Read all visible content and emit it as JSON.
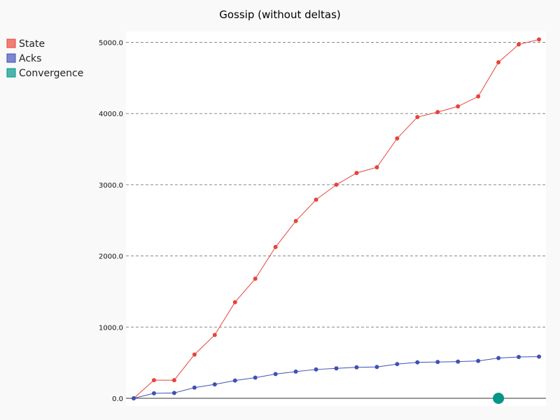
{
  "chart_data": {
    "type": "line",
    "title": "Gossip (without deltas)",
    "xlabel": "",
    "ylabel": "",
    "ylim": [
      0,
      5000
    ],
    "yticks": [
      0,
      1000,
      2000,
      3000,
      4000,
      5000
    ],
    "ytick_labels": [
      "0.0",
      "1000.0",
      "2000.0",
      "3000.0",
      "4000.0",
      "5000.0"
    ],
    "grid": "horizontal-dashed",
    "legend_position": "top-left",
    "x": [
      0,
      1,
      2,
      3,
      4,
      5,
      6,
      7,
      8,
      9,
      10,
      11,
      12,
      13,
      14,
      15,
      16,
      17,
      18,
      19,
      20
    ],
    "series": [
      {
        "name": "State",
        "color": "#e8433a",
        "legend_color": "#f07f78",
        "values": [
          0,
          255,
          255,
          615,
          890,
          1350,
          1680,
          2125,
          2490,
          2790,
          3000,
          3165,
          3245,
          3650,
          3950,
          4020,
          4100,
          4240,
          4720,
          4970,
          5040
        ]
      },
      {
        "name": "Acks",
        "color": "#3f51b5",
        "legend_color": "#7c87d0",
        "values": [
          0,
          70,
          75,
          150,
          195,
          250,
          290,
          340,
          375,
          405,
          420,
          435,
          440,
          480,
          505,
          510,
          515,
          525,
          565,
          580,
          585
        ]
      },
      {
        "name": "Convergence",
        "color": "#009688",
        "legend_color": "#4db6ac",
        "points": [
          {
            "x": 18,
            "y": 0
          }
        ]
      }
    ]
  }
}
